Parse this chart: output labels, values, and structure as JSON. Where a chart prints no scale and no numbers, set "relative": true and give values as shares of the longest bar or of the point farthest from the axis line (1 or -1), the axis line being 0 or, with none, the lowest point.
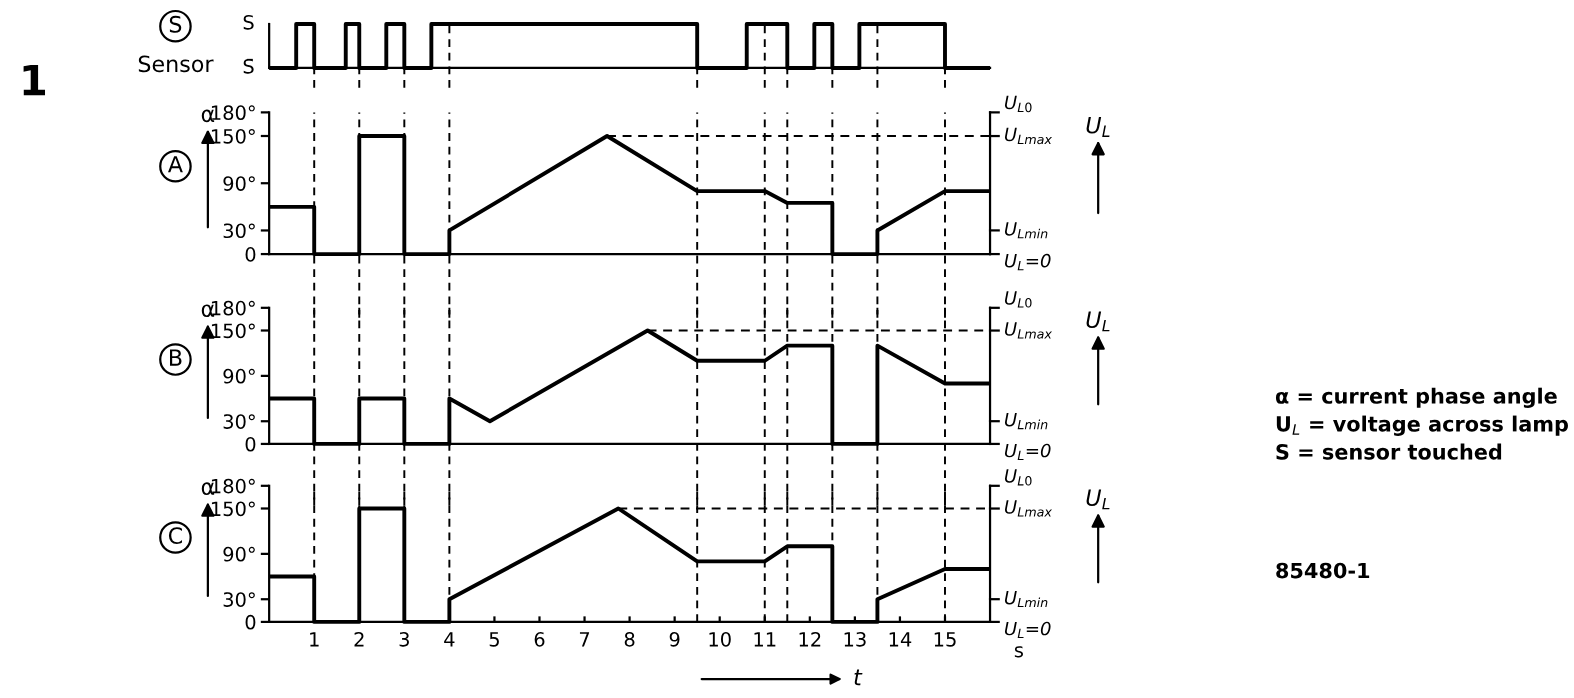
{
  "chart_data": [
    {
      "type": "step",
      "title": "S",
      "ylabel": "Sensor",
      "relative": true,
      "annotations": [
        "1",
        "S",
        "S̄"
      ],
      "xlim": [
        0,
        16
      ],
      "tick_labels": "y",
      "series": [
        {
          "color": "#000000",
          "x": [
            0,
            0.6,
            1,
            1.7,
            2,
            2.6,
            3,
            3.6,
            9.5,
            10.6,
            11.5,
            12.1,
            12.5,
            13.1,
            15,
            16
          ],
          "values": [
            0,
            1,
            0,
            1,
            0,
            1,
            0,
            1,
            0,
            1,
            0,
            1,
            0,
            1,
            0,
            0
          ]
        }
      ],
      "ref_lines": [
        {
          "axis": "x",
          "value": 1,
          "line_style": "dashed",
          "color": "#000000"
        },
        {
          "axis": "x",
          "value": 2,
          "line_style": "dashed",
          "color": "#000000"
        },
        {
          "axis": "x",
          "value": 3,
          "line_style": "dashed",
          "color": "#000000"
        },
        {
          "axis": "x",
          "value": 4,
          "line_style": "dashed",
          "color": "#000000"
        },
        {
          "axis": "x",
          "value": 9.5,
          "line_style": "dashed",
          "color": "#000000"
        },
        {
          "axis": "x",
          "value": 11,
          "line_style": "dashed",
          "color": "#000000"
        },
        {
          "axis": "x",
          "value": 11.5,
          "line_style": "dashed",
          "color": "#000000"
        },
        {
          "axis": "x",
          "value": 12.5,
          "line_style": "dashed",
          "color": "#000000"
        },
        {
          "axis": "x",
          "value": 13.5,
          "line_style": "dashed",
          "color": "#000000"
        },
        {
          "axis": "x",
          "value": 15,
          "line_style": "dashed",
          "color": "#000000"
        }
      ]
    },
    {
      "type": "line",
      "title": "A",
      "ylabel": "α",
      "y2label": "U$_{L}$",
      "xlim": [
        0,
        16
      ],
      "ylim": [
        0,
        180
      ],
      "yticks": [
        0,
        {
          "value": 30,
          "label": "30°"
        },
        {
          "value": 90,
          "label": "90°"
        },
        {
          "value": 150,
          "label": "150°"
        },
        {
          "value": 180,
          "label": "180°"
        }
      ],
      "tick_labels": "y",
      "annotations": [
        "U$_{L0}$",
        "U$_{Lmax}$",
        "U$_{Lmin}$",
        "U$_{L}$=0"
      ],
      "series": [
        {
          "color": "#000000",
          "x": [
            0,
            1,
            1,
            2,
            2,
            3,
            3,
            4,
            4,
            7.5,
            9.5,
            11,
            11.5,
            12.5,
            12.5,
            13.5,
            13.5,
            15,
            16
          ],
          "values": [
            60,
            60,
            0,
            0,
            150,
            150,
            0,
            0,
            30,
            150,
            80,
            80,
            65,
            65,
            0,
            0,
            30,
            80,
            80
          ]
        },
        {
          "color": "#000000",
          "line_style": "dashed",
          "x": [
            7.5,
            16
          ],
          "values": [
            150,
            150
          ]
        }
      ],
      "ref_lines": [
        {
          "axis": "x",
          "value": 1,
          "line_style": "dashed",
          "color": "#000000"
        },
        {
          "axis": "x",
          "value": 2,
          "line_style": "dashed",
          "color": "#000000"
        },
        {
          "axis": "x",
          "value": 3,
          "line_style": "dashed",
          "color": "#000000"
        },
        {
          "axis": "x",
          "value": 4,
          "line_style": "dashed",
          "color": "#000000"
        },
        {
          "axis": "x",
          "value": 9.5,
          "line_style": "dashed",
          "color": "#000000"
        },
        {
          "axis": "x",
          "value": 11,
          "line_style": "dashed",
          "color": "#000000"
        },
        {
          "axis": "x",
          "value": 11.5,
          "line_style": "dashed",
          "color": "#000000"
        },
        {
          "axis": "x",
          "value": 12.5,
          "line_style": "dashed",
          "color": "#000000"
        },
        {
          "axis": "x",
          "value": 13.5,
          "line_style": "dashed",
          "color": "#000000"
        },
        {
          "axis": "x",
          "value": 15,
          "line_style": "dashed",
          "color": "#000000"
        }
      ]
    },
    {
      "type": "line",
      "title": "B",
      "ylabel": "α",
      "y2label": "U$_{L}$",
      "xlim": [
        0,
        16
      ],
      "ylim": [
        0,
        180
      ],
      "yticks": [
        0,
        {
          "value": 30,
          "label": "30°"
        },
        {
          "value": 90,
          "label": "90°"
        },
        {
          "value": 150,
          "label": "150°"
        },
        {
          "value": 180,
          "label": "180°"
        }
      ],
      "tick_labels": "y",
      "annotations": [
        "U$_{L0}$",
        "U$_{Lmax}$",
        "U$_{Lmin}$",
        "U$_{L}$=0"
      ],
      "series": [
        {
          "color": "#000000",
          "x": [
            0,
            1,
            1,
            2,
            2,
            3,
            3,
            4,
            4,
            4.9,
            8.4,
            9.5,
            11,
            11.5,
            12.5,
            12.5,
            13.5,
            13.5,
            15,
            16
          ],
          "values": [
            60,
            60,
            0,
            0,
            60,
            60,
            0,
            0,
            60,
            30,
            150,
            110,
            110,
            130,
            130,
            0,
            0,
            130,
            80,
            80
          ]
        },
        {
          "color": "#000000",
          "line_style": "dashed",
          "x": [
            8.4,
            16
          ],
          "values": [
            150,
            150
          ]
        }
      ],
      "ref_lines": [
        {
          "axis": "x",
          "value": 1,
          "line_style": "dashed",
          "color": "#000000"
        },
        {
          "axis": "x",
          "value": 2,
          "line_style": "dashed",
          "color": "#000000"
        },
        {
          "axis": "x",
          "value": 3,
          "line_style": "dashed",
          "color": "#000000"
        },
        {
          "axis": "x",
          "value": 4,
          "line_style": "dashed",
          "color": "#000000"
        },
        {
          "axis": "x",
          "value": 9.5,
          "line_style": "dashed",
          "color": "#000000"
        },
        {
          "axis": "x",
          "value": 11,
          "line_style": "dashed",
          "color": "#000000"
        },
        {
          "axis": "x",
          "value": 11.5,
          "line_style": "dashed",
          "color": "#000000"
        },
        {
          "axis": "x",
          "value": 12.5,
          "line_style": "dashed",
          "color": "#000000"
        },
        {
          "axis": "x",
          "value": 13.5,
          "line_style": "dashed",
          "color": "#000000"
        },
        {
          "axis": "x",
          "value": 15,
          "line_style": "dashed",
          "color": "#000000"
        }
      ]
    },
    {
      "type": "line",
      "title": "C",
      "ylabel": "α",
      "y2label": "U$_{L}$",
      "xlabel": "s",
      "xlim": [
        0,
        16
      ],
      "ylim": [
        0,
        180
      ],
      "xticks": [
        1,
        2,
        3,
        4,
        5,
        6,
        7,
        8,
        9,
        10,
        11,
        12,
        13,
        14,
        15
      ],
      "yticks": [
        0,
        {
          "value": 30,
          "label": "30°"
        },
        {
          "value": 90,
          "label": "90°"
        },
        {
          "value": 150,
          "label": "150°"
        },
        {
          "value": 180,
          "label": "180°"
        }
      ],
      "annotations": [
        "U$_{L0}$",
        "U$_{Lmax}$",
        "U$_{Lmin}$",
        "U$_{L}$=0",
        "t"
      ],
      "series": [
        {
          "color": "#000000",
          "x": [
            0,
            1,
            1,
            2,
            2,
            3,
            3,
            4,
            4,
            7.75,
            9.5,
            11,
            11.5,
            12.5,
            12.5,
            13.5,
            13.5,
            15,
            16
          ],
          "values": [
            60,
            60,
            0,
            0,
            150,
            150,
            0,
            0,
            30,
            150,
            80,
            80,
            100,
            100,
            0,
            0,
            30,
            70,
            70
          ]
        },
        {
          "color": "#000000",
          "line_style": "dashed",
          "x": [
            7.75,
            16
          ],
          "values": [
            150,
            150
          ]
        }
      ],
      "ref_lines": [
        {
          "axis": "x",
          "value": 1,
          "line_style": "dashed",
          "color": "#000000"
        },
        {
          "axis": "x",
          "value": 2,
          "line_style": "dashed",
          "color": "#000000"
        },
        {
          "axis": "x",
          "value": 3,
          "line_style": "dashed",
          "color": "#000000"
        },
        {
          "axis": "x",
          "value": 4,
          "line_style": "dashed",
          "color": "#000000"
        },
        {
          "axis": "x",
          "value": 9.5,
          "line_style": "dashed",
          "color": "#000000"
        },
        {
          "axis": "x",
          "value": 11,
          "line_style": "dashed",
          "color": "#000000"
        },
        {
          "axis": "x",
          "value": 11.5,
          "line_style": "dashed",
          "color": "#000000"
        },
        {
          "axis": "x",
          "value": 12.5,
          "line_style": "dashed",
          "color": "#000000"
        },
        {
          "axis": "x",
          "value": 13.5,
          "line_style": "dashed",
          "color": "#000000"
        },
        {
          "axis": "x",
          "value": 15,
          "line_style": "dashed",
          "color": "#000000"
        }
      ]
    },
    {
      "type": "other",
      "annotations": [
        "α = current phase angle",
        "U$_{L}$ = voltage across lamp",
        "S = sensor touched",
        "85480-1"
      ]
    }
  ]
}
